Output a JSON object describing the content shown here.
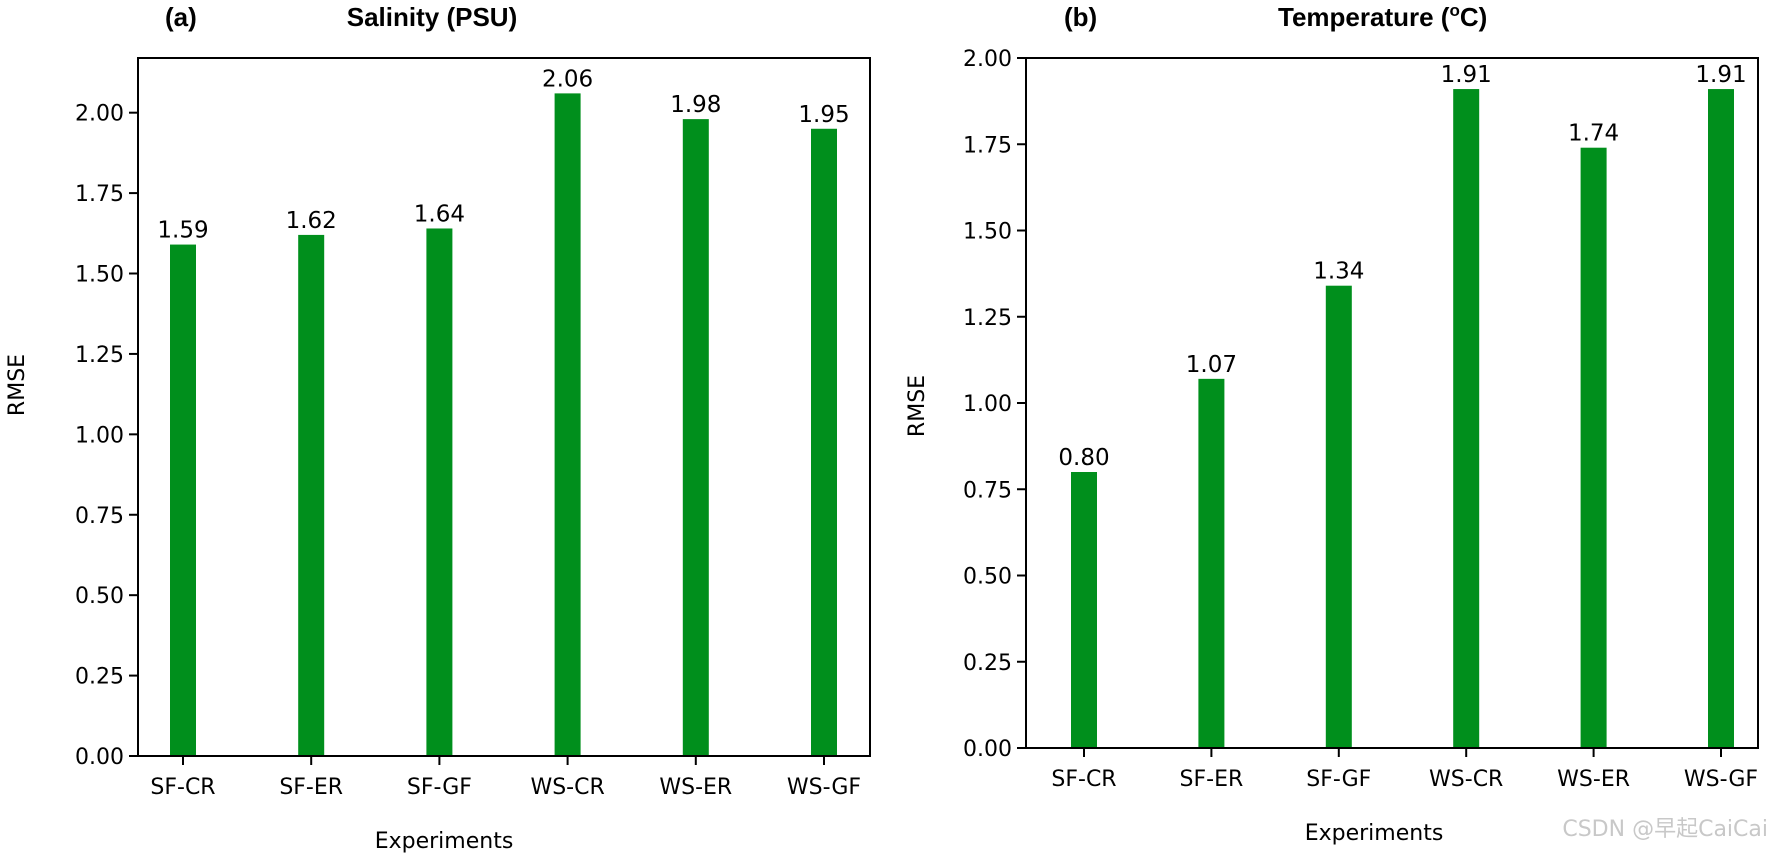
{
  "chart_data": [
    {
      "type": "bar",
      "panel_label": "(a)",
      "title": "Salinity (PSU)",
      "xlabel": "Experiments",
      "ylabel": "RMSE",
      "categories": [
        "SF-CR",
        "SF-ER",
        "SF-GF",
        "WS-CR",
        "WS-ER",
        "WS-GF"
      ],
      "values": [
        1.59,
        1.62,
        1.64,
        2.06,
        1.98,
        1.95
      ],
      "data_labels": [
        "1.59",
        "1.62",
        "1.64",
        "2.06",
        "1.98",
        "1.95"
      ],
      "ylim": [
        0,
        2.17
      ],
      "yticks": [
        0,
        0.25,
        0.5,
        0.75,
        1.0,
        1.25,
        1.5,
        1.75,
        2.0
      ],
      "ytick_labels": [
        "0.00",
        "0.25",
        "0.50",
        "0.75",
        "1.00",
        "1.25",
        "1.50",
        "1.75",
        "2.00"
      ],
      "bar_color": "#008f1c",
      "grid": false,
      "legend": "none"
    },
    {
      "type": "bar",
      "panel_label": "(b)",
      "title": "Temperature (",
      "title_sup": "o",
      "title_end": "C)",
      "xlabel": "Experiments",
      "ylabel": "RMSE",
      "categories": [
        "SF-CR",
        "SF-ER",
        "SF-GF",
        "WS-CR",
        "WS-ER",
        "WS-GF"
      ],
      "values": [
        0.8,
        1.07,
        1.34,
        1.91,
        1.74,
        1.91
      ],
      "data_labels": [
        "0.80",
        "1.07",
        "1.34",
        "1.91",
        "1.74",
        "1.91"
      ],
      "ylim": [
        0,
        2.0
      ],
      "yticks": [
        0,
        0.25,
        0.5,
        0.75,
        1.0,
        1.25,
        1.5,
        1.75,
        2.0
      ],
      "ytick_labels": [
        "0.00",
        "0.25",
        "0.50",
        "0.75",
        "1.00",
        "1.25",
        "1.50",
        "1.75",
        "2.00"
      ],
      "bar_color": "#008f1c",
      "grid": false,
      "legend": "none"
    }
  ],
  "watermark": "CSDN @早起CaiCai"
}
